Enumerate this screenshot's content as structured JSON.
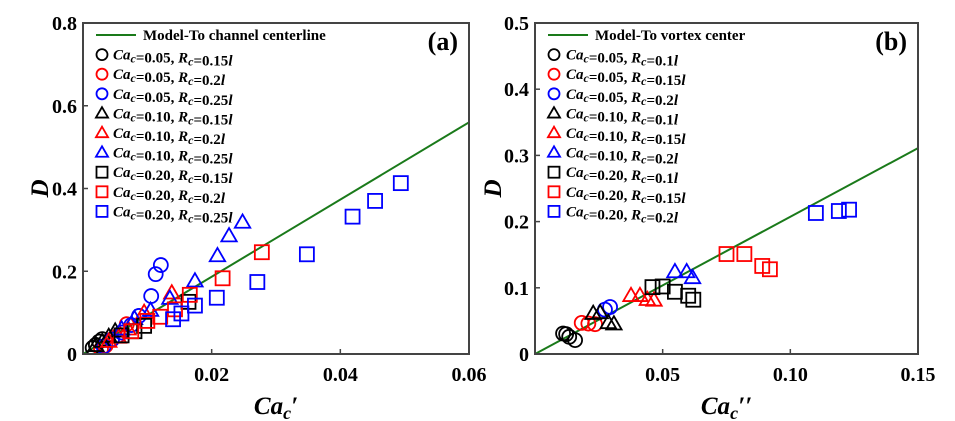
{
  "chart_data": [
    {
      "type": "scatter",
      "panel_label": "(a)",
      "title": "",
      "xlabel": "Ca",
      "xlabel_sub": "c",
      "xlabel_suffix": "′",
      "ylabel": "D",
      "xlim": [
        0,
        0.06
      ],
      "ylim": [
        0,
        0.8
      ],
      "xticks": [
        0.02,
        0.04,
        0.06
      ],
      "xtick_labels": [
        "0.02",
        "0.04",
        "0.06"
      ],
      "yticks": [
        0,
        0.2,
        0.4,
        0.6,
        0.8
      ],
      "ytick_labels": [
        "0",
        "0.2",
        "0.4",
        "0.6",
        "0.8"
      ],
      "grid": false,
      "legend_position": "top-left",
      "model_line": {
        "name": "Model-To channel centerline",
        "color": "#1a7a1a",
        "x": [
          0,
          0.06
        ],
        "y": [
          0,
          0.56
        ]
      },
      "series": [
        {
          "name_ca": "=0.05, ",
          "name_r": "=0.15",
          "marker": "circle",
          "color": "#000000",
          "x": [
            0.0015,
            0.002,
            0.0025,
            0.003
          ],
          "y": [
            0.015,
            0.022,
            0.03,
            0.036
          ]
        },
        {
          "name_ca": "=0.05, ",
          "name_r": "=0.2",
          "marker": "circle",
          "color": "#ff0000",
          "x": [
            0.0028,
            0.0035,
            0.0045,
            0.0055,
            0.0068
          ],
          "y": [
            0.012,
            0.02,
            0.035,
            0.045,
            0.072
          ]
        },
        {
          "name_ca": "=0.05, ",
          "name_r": "=0.25",
          "marker": "circle",
          "color": "#0000ff",
          "x": [
            0.0032,
            0.0045,
            0.006,
            0.0075,
            0.0087,
            0.0106,
            0.0113,
            0.0121
          ],
          "y": [
            0.018,
            0.035,
            0.052,
            0.07,
            0.092,
            0.14,
            0.193,
            0.215
          ]
        },
        {
          "name_ca": "=0.10, ",
          "name_r": "=0.15",
          "marker": "triangle",
          "color": "#000000",
          "x": [
            0.002,
            0.003,
            0.004,
            0.005
          ],
          "y": [
            0.02,
            0.03,
            0.042,
            0.055
          ]
        },
        {
          "name_ca": "=0.10, ",
          "name_r": "=0.2",
          "marker": "triangle",
          "color": "#ff0000",
          "x": [
            0.004,
            0.0055,
            0.007,
            0.0095,
            0.0138
          ],
          "y": [
            0.03,
            0.04,
            0.06,
            0.1,
            0.147
          ]
        },
        {
          "name_ca": "=0.10, ",
          "name_r": "=0.25",
          "marker": "triangle",
          "color": "#0000ff",
          "x": [
            0.006,
            0.008,
            0.0105,
            0.0135,
            0.0174,
            0.0209,
            0.0227,
            0.0248
          ],
          "y": [
            0.06,
            0.085,
            0.105,
            0.134,
            0.176,
            0.237,
            0.285,
            0.318
          ]
        },
        {
          "name_ca": "=0.20, ",
          "name_r": "=0.15",
          "marker": "square",
          "color": "#000000",
          "x": [
            0.006,
            0.008,
            0.0095,
            0.0164
          ],
          "y": [
            0.045,
            0.055,
            0.068,
            0.126
          ]
        },
        {
          "name_ca": "=0.20, ",
          "name_r": "=0.2",
          "marker": "square",
          "color": "#ff0000",
          "x": [
            0.0075,
            0.01,
            0.012,
            0.0143,
            0.0166,
            0.0217,
            0.0278
          ],
          "y": [
            0.055,
            0.08,
            0.09,
            0.108,
            0.143,
            0.183,
            0.246
          ]
        },
        {
          "name_ca": "=0.20, ",
          "name_r": "=0.25",
          "marker": "square",
          "color": "#0000ff",
          "x": [
            0.014,
            0.0153,
            0.0174,
            0.0208,
            0.0271,
            0.0348,
            0.0419,
            0.0454,
            0.0494
          ],
          "y": [
            0.084,
            0.098,
            0.117,
            0.136,
            0.174,
            0.241,
            0.332,
            0.37,
            0.413
          ]
        }
      ]
    },
    {
      "type": "scatter",
      "panel_label": "(b)",
      "title": "",
      "xlabel": "Ca",
      "xlabel_sub": "c",
      "xlabel_suffix": "′′",
      "ylabel": "D",
      "xlim": [
        0,
        0.15
      ],
      "ylim": [
        0,
        0.5
      ],
      "xticks": [
        0.05,
        0.1,
        0.15
      ],
      "xtick_labels": [
        "0.05",
        "0.10",
        "0.15"
      ],
      "yticks": [
        0,
        0.1,
        0.2,
        0.3,
        0.4,
        0.5
      ],
      "ytick_labels": [
        "0",
        "0.1",
        "0.2",
        "0.3",
        "0.4",
        "0.5"
      ],
      "grid": false,
      "legend_position": "top-left",
      "model_line": {
        "name": "Model-To vortex center",
        "color": "#1a7a1a",
        "x": [
          0,
          0.15
        ],
        "y": [
          0,
          0.311
        ]
      },
      "series": [
        {
          "name_ca": "=0.05, ",
          "name_r": "=0.1",
          "marker": "circle",
          "color": "#000000",
          "x": [
            0.011,
            0.0122,
            0.0134,
            0.0157
          ],
          "y": [
            0.031,
            0.03,
            0.026,
            0.021
          ]
        },
        {
          "name_ca": "=0.05, ",
          "name_r": "=0.15",
          "marker": "circle",
          "color": "#ff0000",
          "x": [
            0.0183,
            0.0209,
            0.0235
          ],
          "y": [
            0.047,
            0.046,
            0.045
          ]
        },
        {
          "name_ca": "=0.05, ",
          "name_r": "=0.2",
          "marker": "circle",
          "color": "#0000ff",
          "x": [
            0.0274,
            0.0294
          ],
          "y": [
            0.067,
            0.071
          ]
        },
        {
          "name_ca": "=0.10, ",
          "name_r": "=0.1",
          "marker": "triangle",
          "color": "#000000",
          "x": [
            0.0228,
            0.0255,
            0.0287,
            0.0309
          ],
          "y": [
            0.061,
            0.062,
            0.047,
            0.045
          ]
        },
        {
          "name_ca": "=0.10, ",
          "name_r": "=0.15",
          "marker": "triangle",
          "color": "#ff0000",
          "x": [
            0.0376,
            0.0411,
            0.044,
            0.0466
          ],
          "y": [
            0.088,
            0.088,
            0.082,
            0.081
          ]
        },
        {
          "name_ca": "=0.10, ",
          "name_r": "=0.2",
          "marker": "triangle",
          "color": "#0000ff",
          "x": [
            0.0548,
            0.0594,
            0.0617
          ],
          "y": [
            0.124,
            0.124,
            0.115
          ]
        },
        {
          "name_ca": "=0.20, ",
          "name_r": "=0.1",
          "marker": "square",
          "color": "#000000",
          "x": [
            0.046,
            0.05,
            0.0548,
            0.06,
            0.062
          ],
          "y": [
            0.101,
            0.102,
            0.094,
            0.088,
            0.082
          ]
        },
        {
          "name_ca": "=0.20, ",
          "name_r": "=0.15",
          "marker": "square",
          "color": "#ff0000",
          "x": [
            0.075,
            0.082,
            0.089,
            0.092
          ],
          "y": [
            0.151,
            0.151,
            0.133,
            0.128
          ]
        },
        {
          "name_ca": "=0.20, ",
          "name_r": "=0.2",
          "marker": "square",
          "color": "#0000ff",
          "x": [
            0.11,
            0.119,
            0.123
          ],
          "y": [
            0.213,
            0.216,
            0.218
          ]
        }
      ]
    }
  ],
  "legend_tokens": {
    "ca": "Ca",
    "c": "c",
    "r": "R",
    "l": "l"
  }
}
